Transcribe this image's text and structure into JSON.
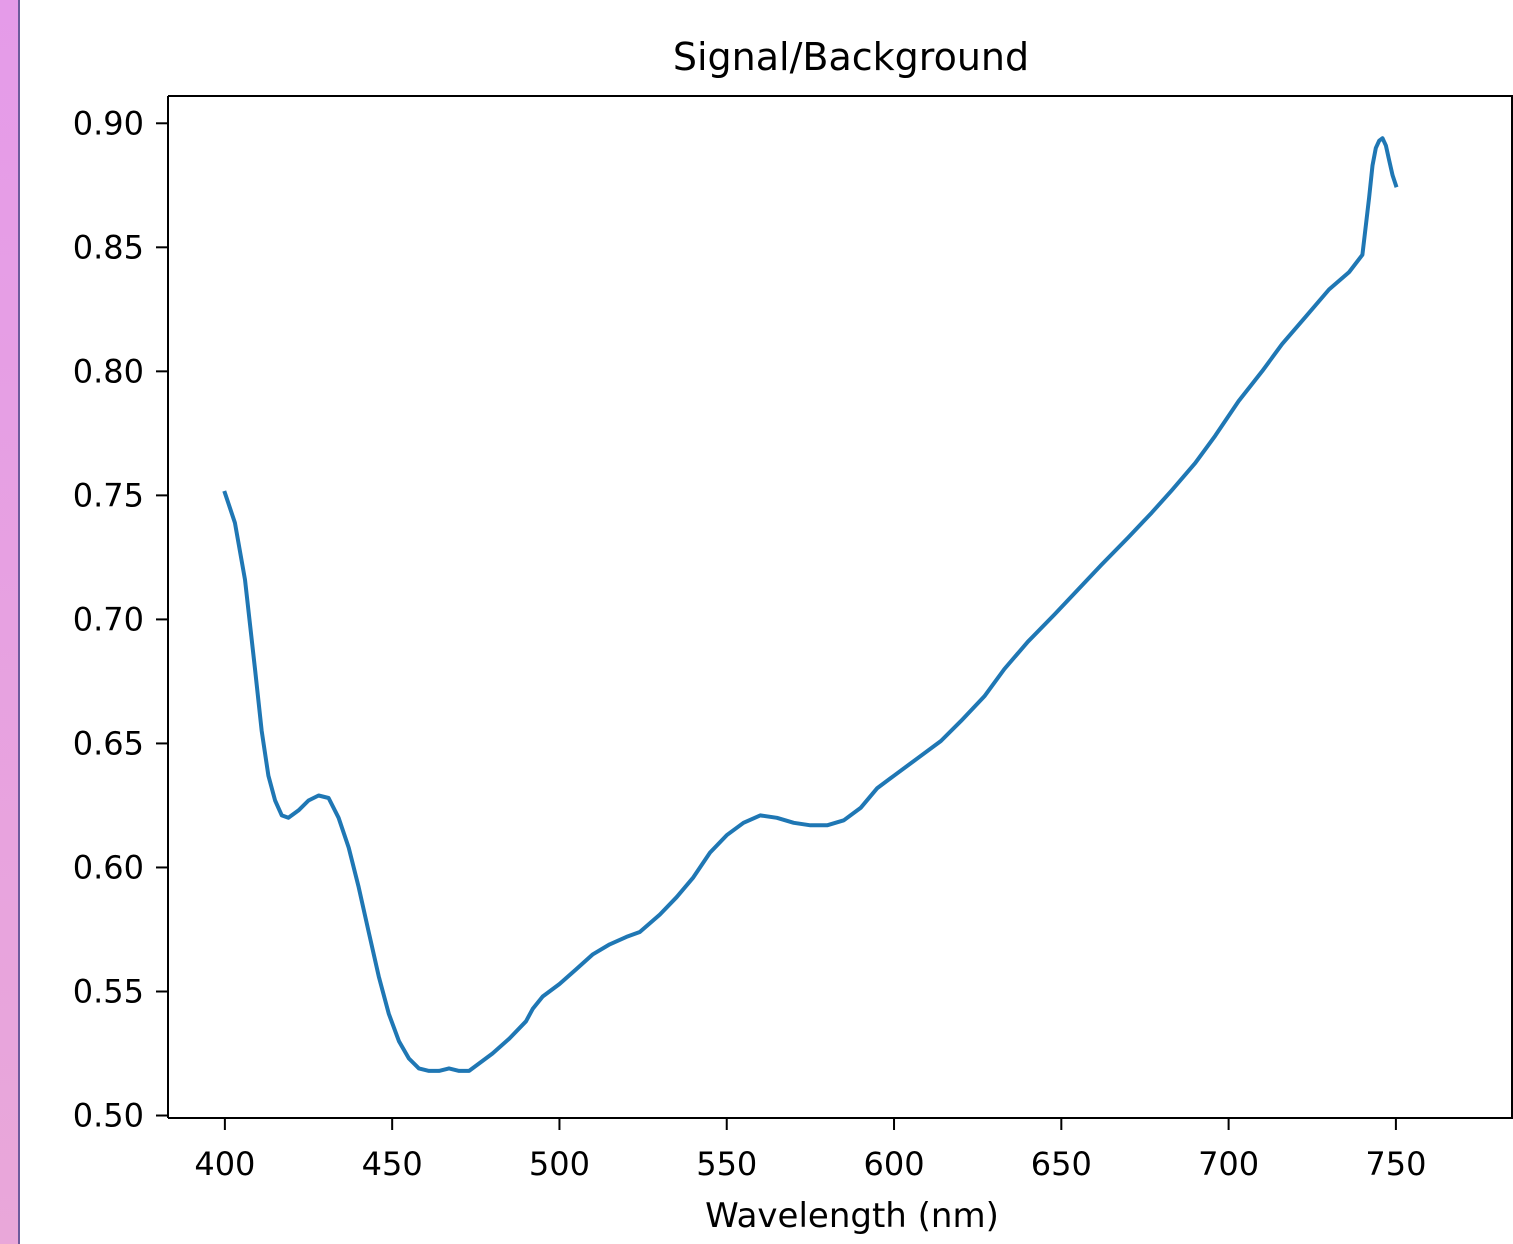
{
  "page": {
    "strip_gradient": [
      "#e59be9",
      "#e9a7d9"
    ]
  },
  "chart_data": {
    "type": "line",
    "title": "Signal/Background",
    "xlabel": "Wavelength (nm)",
    "ylabel": "",
    "xlim": [
      383,
      785
    ],
    "ylim": [
      0.499,
      0.911
    ],
    "xticks": [
      400,
      450,
      500,
      550,
      600,
      650,
      700,
      750
    ],
    "xtick_labels": [
      "400",
      "450",
      "500",
      "550",
      "600",
      "650",
      "700",
      "750"
    ],
    "yticks": [
      0.5,
      0.55,
      0.6,
      0.65,
      0.7,
      0.75,
      0.8,
      0.85,
      0.9
    ],
    "ytick_labels": [
      "0.50",
      "0.55",
      "0.60",
      "0.65",
      "0.70",
      "0.75",
      "0.80",
      "0.85",
      "0.90"
    ],
    "grid": false,
    "series": [
      {
        "color": "#1f77b4",
        "x": [
          400,
          403,
          406,
          409,
          411,
          413,
          415,
          417,
          419,
          422,
          425,
          428,
          431,
          434,
          437,
          440,
          443,
          446,
          449,
          452,
          455,
          458,
          461,
          464,
          467,
          470,
          473,
          476,
          480,
          485,
          490,
          492,
          495,
          500,
          505,
          510,
          515,
          520,
          524,
          530,
          535,
          540,
          545,
          550,
          555,
          560,
          565,
          570,
          575,
          580,
          585,
          590,
          595,
          600,
          607,
          614,
          620,
          627,
          633,
          640,
          648,
          655,
          662,
          670,
          677,
          683,
          690,
          696,
          703,
          710,
          716,
          723,
          730,
          736,
          740,
          742,
          743,
          744,
          745,
          746,
          747,
          748,
          749,
          750
        ],
        "y": [
          0.751,
          0.739,
          0.716,
          0.68,
          0.655,
          0.637,
          0.627,
          0.621,
          0.62,
          0.623,
          0.627,
          0.629,
          0.628,
          0.62,
          0.608,
          0.592,
          0.574,
          0.556,
          0.541,
          0.53,
          0.523,
          0.519,
          0.518,
          0.518,
          0.519,
          0.518,
          0.518,
          0.521,
          0.525,
          0.531,
          0.538,
          0.543,
          0.548,
          0.553,
          0.559,
          0.565,
          0.569,
          0.572,
          0.574,
          0.581,
          0.588,
          0.596,
          0.606,
          0.613,
          0.618,
          0.621,
          0.62,
          0.618,
          0.617,
          0.617,
          0.619,
          0.624,
          0.632,
          0.637,
          0.644,
          0.651,
          0.659,
          0.669,
          0.68,
          0.691,
          0.702,
          0.712,
          0.722,
          0.733,
          0.743,
          0.752,
          0.763,
          0.774,
          0.788,
          0.8,
          0.811,
          0.822,
          0.833,
          0.84,
          0.847,
          0.87,
          0.883,
          0.89,
          0.893,
          0.894,
          0.891,
          0.885,
          0.879,
          0.875
        ]
      }
    ]
  }
}
